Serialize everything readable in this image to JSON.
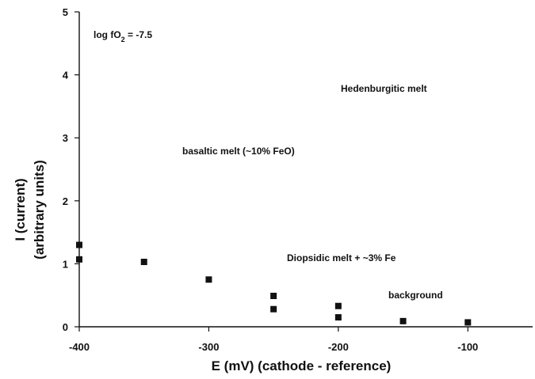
{
  "chart_data": {
    "type": "scatter",
    "title": "",
    "xlabel": "E (mV) (cathode - reference)",
    "ylabel_line1": "I (current)",
    "ylabel_line2": "(arbitrary units)",
    "xlim": [
      -400,
      -50
    ],
    "ylim": [
      0,
      5
    ],
    "xticks": [
      -400,
      -300,
      -200,
      -100
    ],
    "xtick_labels": [
      "-400",
      "-300",
      "-200",
      "-100"
    ],
    "yticks": [
      0,
      1,
      2,
      3,
      4,
      5
    ],
    "ytick_labels": [
      "0",
      "1",
      "2",
      "3",
      "4",
      "5"
    ],
    "grid": false,
    "legend": "none",
    "marker": "square",
    "marker_color": "#111111",
    "points": [
      {
        "x": -400,
        "y": 1.3
      },
      {
        "x": -400,
        "y": 1.07
      },
      {
        "x": -350,
        "y": 1.03
      },
      {
        "x": -300,
        "y": 0.75
      },
      {
        "x": -250,
        "y": 0.49
      },
      {
        "x": -250,
        "y": 0.28
      },
      {
        "x": -200,
        "y": 0.33
      },
      {
        "x": -200,
        "y": 0.15
      },
      {
        "x": -150,
        "y": 0.09
      },
      {
        "x": -100,
        "y": 0.07
      }
    ],
    "annotations": {
      "logfo2_prefix": "log fO",
      "logfo2_sub": "2",
      "logfo2_suffix": " = -7.5",
      "hedenburgitic": "Hedenburgitic melt",
      "basaltic": "basaltic melt (~10% FeO)",
      "diopsidic": "Diopsidic melt + ~3% Fe",
      "background": "background"
    }
  }
}
